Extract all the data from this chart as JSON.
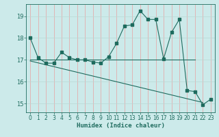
{
  "x": [
    0,
    1,
    2,
    3,
    4,
    5,
    6,
    7,
    8,
    9,
    10,
    11,
    12,
    13,
    14,
    15,
    16,
    17,
    18,
    19,
    20,
    21,
    22,
    23
  ],
  "main_line_y": [
    18.0,
    17.1,
    16.85,
    16.85,
    17.35,
    17.1,
    17.0,
    17.0,
    16.9,
    16.85,
    17.15,
    17.75,
    18.55,
    18.6,
    19.25,
    18.85,
    18.85,
    17.05,
    18.25,
    18.85,
    15.6,
    15.55,
    14.95,
    15.2
  ],
  "flat_line_x": [
    0,
    21
  ],
  "flat_line_y": [
    17.0,
    17.0
  ],
  "decl_line_x": [
    0,
    22
  ],
  "decl_line_y": [
    16.95,
    15.05
  ],
  "background_color": "#cceaea",
  "line_color": "#1e6b5e",
  "grid_major_color": "#f0c0c0",
  "grid_minor_color": "#d8ecec",
  "xlabel": "Humidex (Indice chaleur)",
  "ylim": [
    14.6,
    19.55
  ],
  "xlim": [
    -0.5,
    23.5
  ],
  "yticks": [
    15,
    16,
    17,
    18,
    19
  ],
  "xticks": [
    0,
    1,
    2,
    3,
    4,
    5,
    6,
    7,
    8,
    9,
    10,
    11,
    12,
    13,
    14,
    15,
    16,
    17,
    18,
    19,
    20,
    21,
    22,
    23
  ]
}
